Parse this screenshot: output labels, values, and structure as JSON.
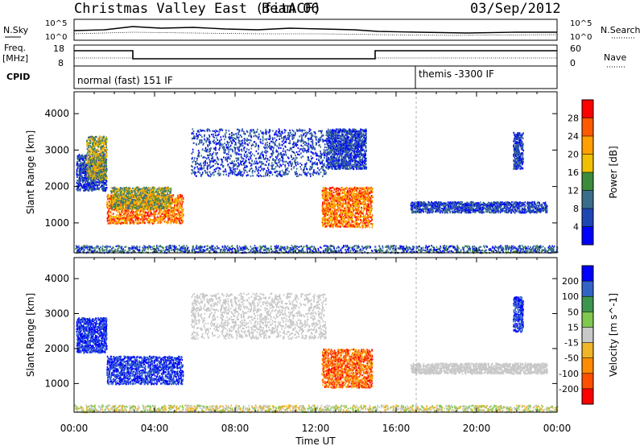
{
  "header": {
    "station": "Christmas Valley East (fitACF)",
    "beam": "Beam 06",
    "date": "03/Sep/2012"
  },
  "strip_labels": {
    "nsky": "N.Sky",
    "nsky_low": "10^0",
    "nsky_high": "10^5",
    "nsearch": "N.Search",
    "freq": "Freq.",
    "freq_unit": "[MHz]",
    "freq_low": "8",
    "freq_high": "18",
    "nave": "Nave",
    "nave_low": "0",
    "nave_high": "60",
    "cpid": "CPID",
    "cpid_mode_1": "normal (fast) 151 IF",
    "cpid_mode_2": "themis -3300 IF"
  },
  "chart_data": [
    {
      "type": "heatmap",
      "name": "Power",
      "ylabel": "Slant Range [km]",
      "xlabel": "Time UT",
      "x_ticks": [
        "00:00",
        "04:00",
        "08:00",
        "12:00",
        "16:00",
        "20:00",
        "00:00"
      ],
      "x_range_hours": [
        0,
        24
      ],
      "ylim": [
        180,
        4600
      ],
      "y_ticks": [
        1000,
        2000,
        3000,
        4000
      ],
      "colorbar": {
        "label": "Power [dB]",
        "ticks": [
          "28",
          "24",
          "20",
          "16",
          "12",
          "8",
          "4"
        ],
        "colors": [
          "#ff0000",
          "#ff5a00",
          "#ffa000",
          "#f0c000",
          "#3c8c3c",
          "#3a6e8a",
          "#1e46b4",
          "#0000ff"
        ]
      },
      "regions": [
        {
          "t0": 0.1,
          "t1": 1.6,
          "r0": 1900,
          "r1": 2900,
          "level": "low"
        },
        {
          "t0": 0.6,
          "t1": 1.6,
          "r0": 2200,
          "r1": 3400,
          "level": "mid"
        },
        {
          "t0": 1.6,
          "t1": 5.4,
          "r0": 1000,
          "r1": 1800,
          "level": "high"
        },
        {
          "t0": 1.8,
          "t1": 4.8,
          "r0": 1400,
          "r1": 2000,
          "level": "mid"
        },
        {
          "t0": 5.8,
          "t1": 12.5,
          "r0": 2300,
          "r1": 3600,
          "level": "low"
        },
        {
          "t0": 12.3,
          "t1": 14.8,
          "r0": 900,
          "r1": 2000,
          "level": "high"
        },
        {
          "t0": 12.5,
          "t1": 14.5,
          "r0": 2500,
          "r1": 3600,
          "level": "low"
        },
        {
          "t0": 16.7,
          "t1": 23.5,
          "r0": 1300,
          "r1": 1600,
          "level": "low"
        },
        {
          "t0": 21.8,
          "t1": 22.3,
          "r0": 2500,
          "r1": 3500,
          "level": "low"
        },
        {
          "t0": 0,
          "t1": 24,
          "r0": 200,
          "r1": 400,
          "level": "ground"
        }
      ]
    },
    {
      "type": "heatmap",
      "name": "Velocity",
      "ylabel": "Slant Range [km]",
      "xlabel": "Time UT",
      "x_ticks": [
        "00:00",
        "04:00",
        "08:00",
        "12:00",
        "16:00",
        "20:00",
        "00:00"
      ],
      "x_range_hours": [
        0,
        24
      ],
      "ylim": [
        180,
        4600
      ],
      "y_ticks": [
        1000,
        2000,
        3000,
        4000
      ],
      "colorbar": {
        "label": "Velocity [m s^-1]",
        "ticks": [
          "200",
          "100",
          "50",
          "15",
          "-15",
          "-50",
          "-100",
          "-200"
        ],
        "colors": [
          "#0000ff",
          "#3264c8",
          "#3c9650",
          "#80c850",
          "#c8c8c8",
          "#f0b428",
          "#ff8c00",
          "#ff5000",
          "#ff0000"
        ]
      },
      "regions": [
        {
          "t0": 0.1,
          "t1": 1.6,
          "r0": 1900,
          "r1": 2900,
          "level": "pos"
        },
        {
          "t0": 1.6,
          "t1": 5.4,
          "r0": 1000,
          "r1": 1800,
          "level": "pos"
        },
        {
          "t0": 5.8,
          "t1": 12.5,
          "r0": 2300,
          "r1": 3600,
          "level": "neutral"
        },
        {
          "t0": 12.3,
          "t1": 14.8,
          "r0": 900,
          "r1": 2000,
          "level": "neg"
        },
        {
          "t0": 16.7,
          "t1": 23.5,
          "r0": 1300,
          "r1": 1600,
          "level": "neutral"
        },
        {
          "t0": 21.8,
          "t1": 22.3,
          "r0": 2500,
          "r1": 3500,
          "level": "pos"
        },
        {
          "t0": 0,
          "t1": 24,
          "r0": 200,
          "r1": 400,
          "level": "ground"
        }
      ]
    }
  ]
}
